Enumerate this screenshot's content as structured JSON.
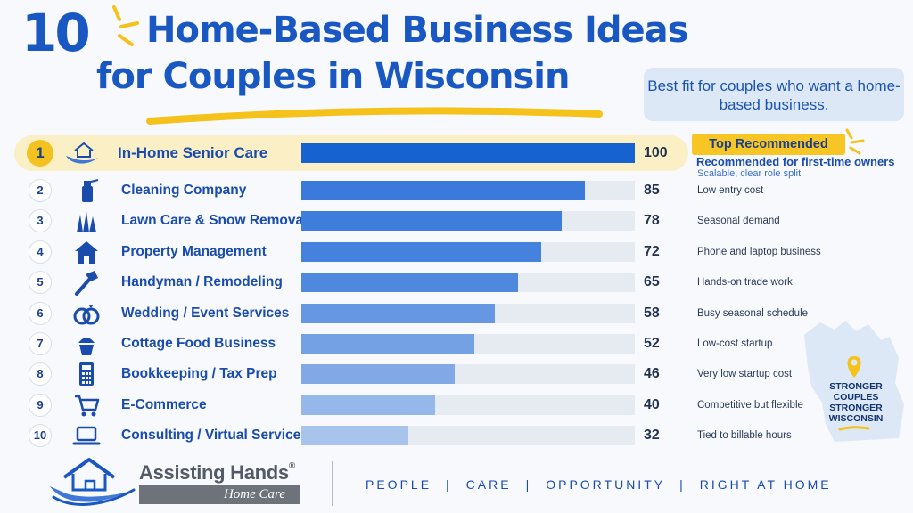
{
  "title": {
    "number": "10",
    "line1": "Home-Based Business Ideas",
    "line2": "for Couples in Wisconsin"
  },
  "best_fit": "Best fit for couples who want a home-based business.",
  "top_recommended": {
    "badge": "Top Recommended",
    "line": "Recommended for first-time owners",
    "sub": "Scalable, clear role split"
  },
  "wisconsin_badge": "STRONGER COUPLES STRONGER WISCONSIN",
  "chart_data": {
    "type": "bar",
    "orientation": "horizontal",
    "xlim": [
      0,
      100
    ],
    "colors": {
      "top": "#1762d1",
      "track": "#e6ebf2",
      "highlight_row": "#fbefc6",
      "badge": "#f7c624"
    },
    "rows": [
      {
        "rank": "1",
        "label": "In-Home Senior Care",
        "value": 100,
        "note": "",
        "icon": "caring-hands-home-icon"
      },
      {
        "rank": "2",
        "label": "Cleaning Company",
        "value": 85,
        "note": "Low entry cost",
        "icon": "spray-bottle-icon"
      },
      {
        "rank": "3",
        "label": "Lawn Care & Snow Removal",
        "value": 78,
        "note": "Seasonal demand",
        "icon": "grass-icon"
      },
      {
        "rank": "4",
        "label": "Property Management",
        "value": 72,
        "note": "Phone and laptop business",
        "icon": "house-icon"
      },
      {
        "rank": "5",
        "label": "Handyman / Remodeling",
        "value": 65,
        "note": "Hands-on trade work",
        "icon": "hammer-icon"
      },
      {
        "rank": "6",
        "label": "Wedding / Event Services",
        "value": 58,
        "note": "Busy seasonal schedule",
        "icon": "rings-icon"
      },
      {
        "rank": "7",
        "label": "Cottage Food Business",
        "value": 52,
        "note": "Low-cost startup",
        "icon": "cupcake-icon"
      },
      {
        "rank": "8",
        "label": "Bookkeeping / Tax Prep",
        "value": 46,
        "note": "Very low startup cost",
        "icon": "calculator-icon"
      },
      {
        "rank": "9",
        "label": "E-Commerce",
        "value": 40,
        "note": "Competitive but flexible",
        "icon": "shopping-cart-icon"
      },
      {
        "rank": "10",
        "label": "Consulting / Virtual Services",
        "value": 32,
        "note": "Tied to billable hours",
        "icon": "laptop-icon"
      }
    ]
  },
  "footer": {
    "brand": "Assisting Hands",
    "brand_mark": "®",
    "brand_sub": "Home Care",
    "tagline": [
      "PEOPLE",
      "CARE",
      "OPPORTUNITY",
      "RIGHT AT HOME"
    ],
    "separator": "|"
  }
}
